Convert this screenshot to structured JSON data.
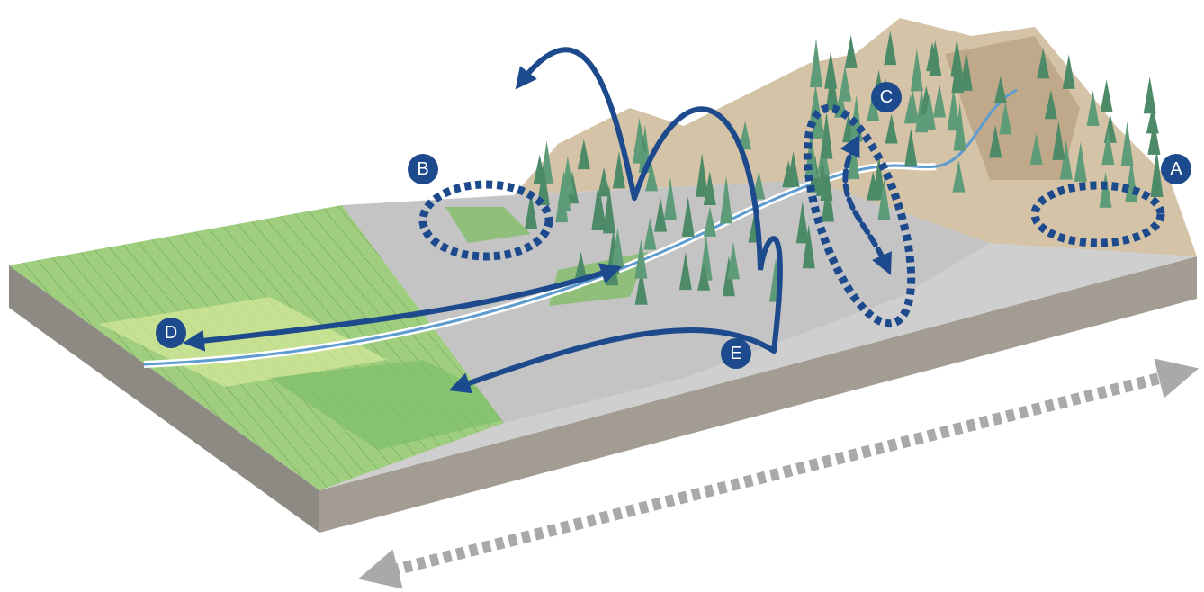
{
  "markers": [
    {
      "label": "A"
    },
    {
      "label": "B"
    },
    {
      "label": "C"
    },
    {
      "label": "D"
    },
    {
      "label": "E"
    }
  ]
}
